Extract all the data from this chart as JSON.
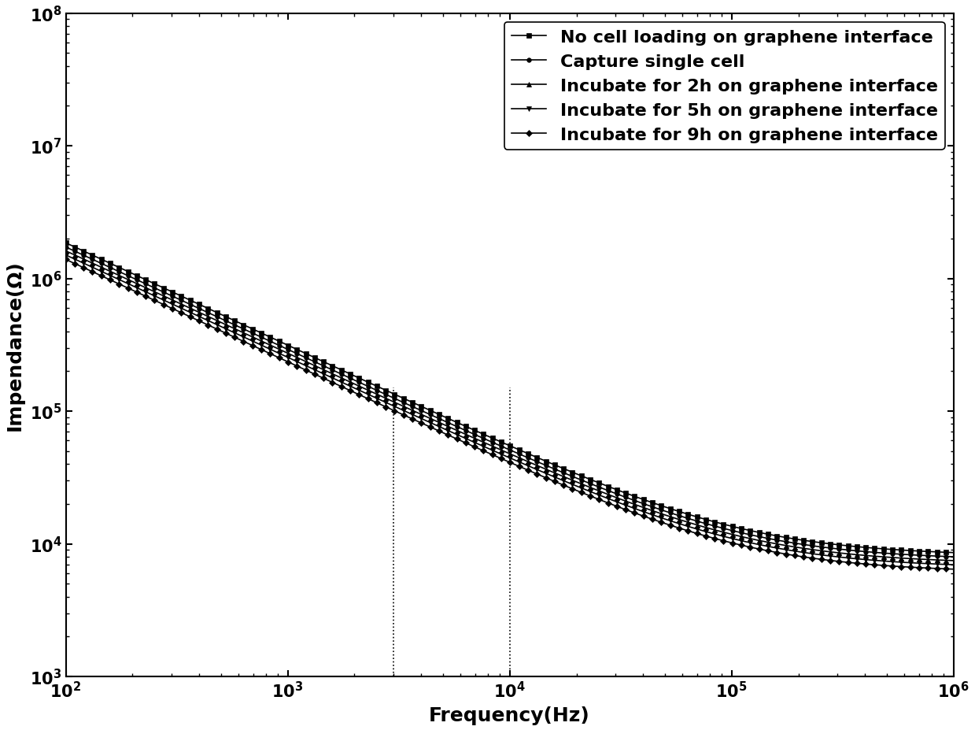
{
  "title": "",
  "xlabel": "Frequency(Hz)",
  "ylabel": "Impendance(Ω)",
  "xlim": [
    100,
    1000000
  ],
  "ylim": [
    1000.0,
    100000000.0
  ],
  "freq_min": 100,
  "freq_max": 1000000,
  "n_points": 800,
  "series": [
    {
      "label": "No cell loading on graphene interface",
      "marker": "s",
      "R": 9000,
      "C": 3.5e-09,
      "CPE_alpha": 0.78,
      "scale": 1.0
    },
    {
      "label": "Capture single cell",
      "marker": "o",
      "R": 9000,
      "C": 3.5e-09,
      "CPE_alpha": 0.78,
      "scale": 0.93
    },
    {
      "label": "Incubate for 2h on graphene interface",
      "marker": "^",
      "R": 9000,
      "C": 3.5e-09,
      "CPE_alpha": 0.78,
      "scale": 0.87
    },
    {
      "label": "Incubate for 5h on graphene interface",
      "marker": "v",
      "R": 9000,
      "C": 3.5e-09,
      "CPE_alpha": 0.78,
      "scale": 0.81
    },
    {
      "label": "Incubate for 9h on graphene interface",
      "marker": "D",
      "R": 9000,
      "C": 3.5e-09,
      "CPE_alpha": 0.78,
      "scale": 0.75
    }
  ],
  "vlines": [
    3000,
    10000
  ],
  "line_color": "black",
  "marker_size": 4,
  "linewidth": 1.2,
  "legend_fontsize": 16,
  "axis_fontsize": 18,
  "tick_fontsize": 15
}
